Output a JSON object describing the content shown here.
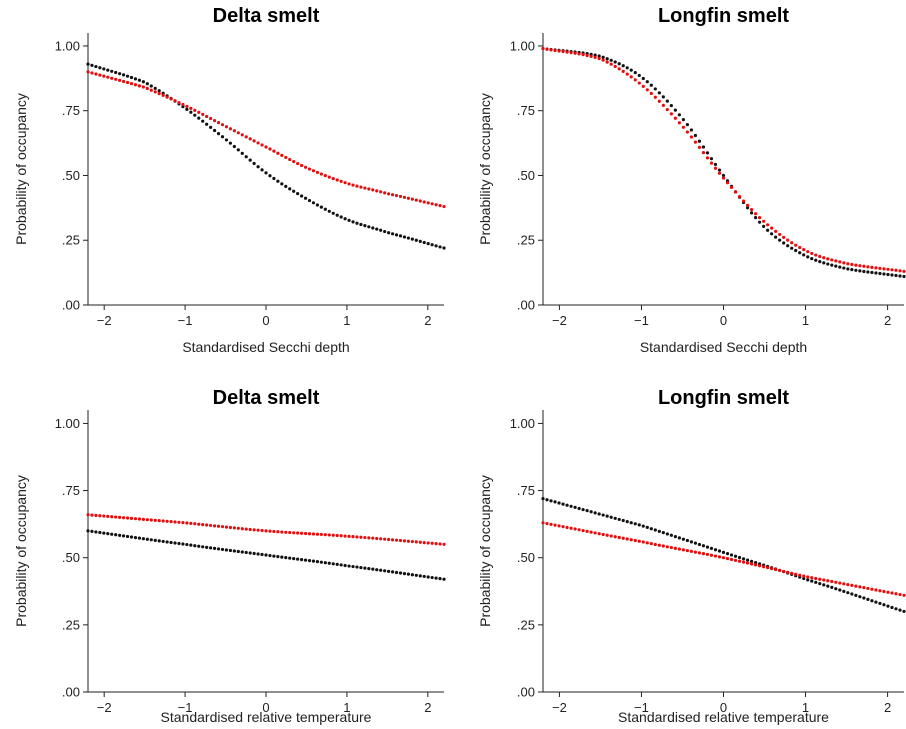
{
  "colors": {
    "series_1": "#111111",
    "series_2": "#e01010"
  },
  "chart_data": [
    {
      "type": "line",
      "title": "Delta smelt",
      "xlabel": "Standardised Secchi depth",
      "ylabel": "Probability of occupancy",
      "xlim": [
        -2.2,
        2.2
      ],
      "ylim": [
        0,
        1.05
      ],
      "xticks": [
        -2,
        -1,
        0,
        1,
        2
      ],
      "xtick_labels": [
        "−2",
        "−1",
        "0",
        "1",
        "2"
      ],
      "yticks": [
        0,
        0.25,
        0.5,
        0.75,
        1.0
      ],
      "ytick_labels": [
        ".00",
        ".25",
        ".50",
        ".75",
        "1.00"
      ],
      "grid": false,
      "series": [
        {
          "color": "#111111",
          "x": [
            -2.2,
            -1.5,
            -1,
            -0.5,
            0,
            0.5,
            1,
            1.5,
            2.2
          ],
          "y": [
            0.93,
            0.86,
            0.76,
            0.64,
            0.51,
            0.41,
            0.33,
            0.28,
            0.22
          ]
        },
        {
          "color": "#e01010",
          "x": [
            -2.2,
            -1.5,
            -1,
            -0.5,
            0,
            0.5,
            1,
            1.5,
            2.2
          ],
          "y": [
            0.9,
            0.84,
            0.77,
            0.69,
            0.61,
            0.53,
            0.47,
            0.43,
            0.38
          ]
        }
      ]
    },
    {
      "type": "line",
      "title": "Longfin smelt",
      "xlabel": "Standardised Secchi depth",
      "ylabel": "Probability of occupancy",
      "xlim": [
        -2.2,
        2.2
      ],
      "ylim": [
        0,
        1.05
      ],
      "xticks": [
        -2,
        -1,
        0,
        1,
        2
      ],
      "xtick_labels": [
        "−2",
        "−1",
        "0",
        "1",
        "2"
      ],
      "yticks": [
        0,
        0.25,
        0.5,
        0.75,
        1.0
      ],
      "ytick_labels": [
        ".00",
        ".25",
        ".50",
        ".75",
        "1.00"
      ],
      "grid": false,
      "series": [
        {
          "color": "#111111",
          "x": [
            -2.2,
            -1.5,
            -1,
            -0.5,
            0,
            0.5,
            1,
            1.5,
            2.2
          ],
          "y": [
            0.99,
            0.96,
            0.88,
            0.72,
            0.5,
            0.3,
            0.19,
            0.14,
            0.11
          ]
        },
        {
          "color": "#e01010",
          "x": [
            -2.2,
            -1.5,
            -1,
            -0.5,
            0,
            0.5,
            1,
            1.5,
            2.2
          ],
          "y": [
            0.99,
            0.95,
            0.85,
            0.69,
            0.49,
            0.32,
            0.21,
            0.16,
            0.13
          ]
        }
      ]
    },
    {
      "type": "line",
      "title": "Delta smelt",
      "xlabel": "Standardised relative temperature",
      "ylabel": "Probability of occupancy",
      "xlim": [
        -2.2,
        2.2
      ],
      "ylim": [
        0,
        1.05
      ],
      "xticks": [
        -2,
        -1,
        0,
        1,
        2
      ],
      "xtick_labels": [
        "−2",
        "−1",
        "0",
        "1",
        "2"
      ],
      "yticks": [
        0,
        0.25,
        0.5,
        0.75,
        1.0
      ],
      "ytick_labels": [
        ".00",
        ".25",
        ".50",
        ".75",
        "1.00"
      ],
      "grid": false,
      "series": [
        {
          "color": "#111111",
          "x": [
            -2.2,
            -1,
            0,
            1,
            2.2
          ],
          "y": [
            0.6,
            0.55,
            0.51,
            0.47,
            0.42
          ]
        },
        {
          "color": "#e01010",
          "x": [
            -2.2,
            -1,
            0,
            1,
            2.2
          ],
          "y": [
            0.66,
            0.63,
            0.6,
            0.58,
            0.55
          ]
        }
      ]
    },
    {
      "type": "line",
      "title": "Longfin smelt",
      "xlabel": "Standardised relative temperature",
      "ylabel": "Probability of occupancy",
      "xlim": [
        -2.2,
        2.2
      ],
      "ylim": [
        0,
        1.05
      ],
      "xticks": [
        -2,
        -1,
        0,
        1,
        2
      ],
      "xtick_labels": [
        "−2",
        "−1",
        "0",
        "1",
        "2"
      ],
      "yticks": [
        0,
        0.25,
        0.5,
        0.75,
        1.0
      ],
      "ytick_labels": [
        ".00",
        ".25",
        ".50",
        ".75",
        "1.00"
      ],
      "grid": false,
      "series": [
        {
          "color": "#111111",
          "x": [
            -2.2,
            -1,
            0,
            1,
            2.2
          ],
          "y": [
            0.72,
            0.62,
            0.52,
            0.42,
            0.3
          ]
        },
        {
          "color": "#e01010",
          "x": [
            -2.2,
            -1,
            0,
            1,
            2.2
          ],
          "y": [
            0.63,
            0.56,
            0.5,
            0.43,
            0.36
          ]
        }
      ]
    }
  ]
}
